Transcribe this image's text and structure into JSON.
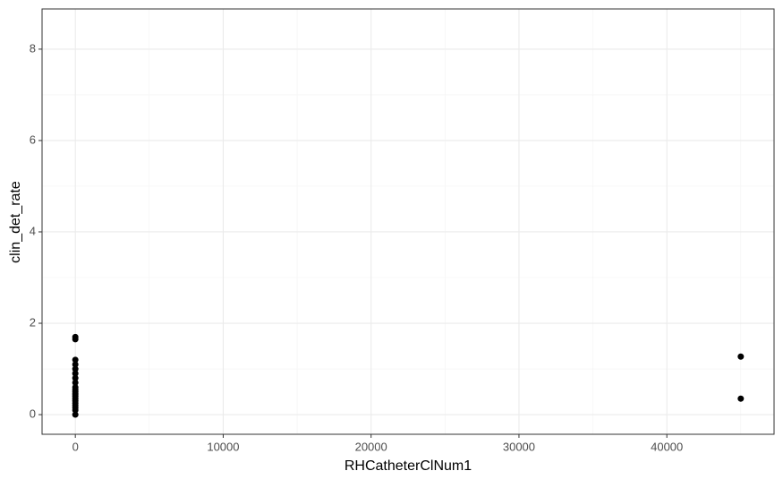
{
  "chart_data": {
    "type": "scatter",
    "x_label": "RHCatheterClNum1",
    "y_label": "clin_det_rate",
    "color": "#000000",
    "x": [
      0,
      0,
      0,
      0,
      0,
      0,
      0,
      0,
      0,
      0,
      0,
      0,
      0,
      0,
      0,
      0,
      0,
      0,
      0,
      0,
      45000,
      45000
    ],
    "values": [
      0,
      0.1,
      0.15,
      0.2,
      0.25,
      0.3,
      0.35,
      0.4,
      0.45,
      0.5,
      0.55,
      0.6,
      0.7,
      0.8,
      0.9,
      1.0,
      1.1,
      1.2,
      1.65,
      1.7,
      1.27,
      0.35
    ],
    "xlim": [
      -2250,
      47250
    ],
    "ylim": [
      -0.43,
      8.88
    ],
    "xticks": [
      0,
      10000,
      20000,
      30000,
      40000
    ],
    "yticks": [
      0,
      2,
      4,
      6,
      8
    ],
    "xminor": [
      5000,
      15000,
      25000,
      35000,
      45000
    ],
    "yminor": [
      1,
      3,
      5,
      7
    ],
    "grid": true
  }
}
